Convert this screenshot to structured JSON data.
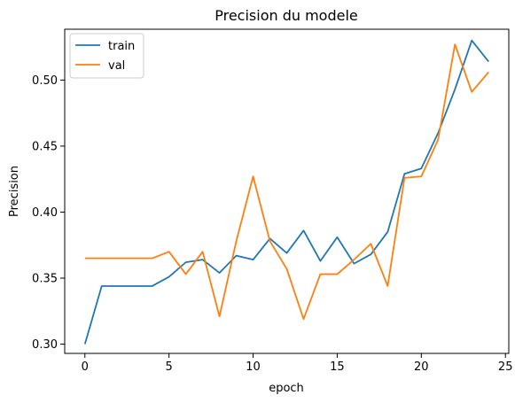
{
  "chart_data": {
    "type": "line",
    "title": "Precision du modele",
    "xlabel": "epoch",
    "ylabel": "Precision",
    "xlim": [
      -1.2,
      25.2
    ],
    "ylim": [
      0.293,
      0.5385
    ],
    "xticks": [
      0,
      5,
      10,
      15,
      20,
      25
    ],
    "yticks": [
      0.3,
      0.35,
      0.4,
      0.45,
      0.5
    ],
    "ytick_labels": [
      "0.30",
      "0.35",
      "0.40",
      "0.45",
      "0.50"
    ],
    "xtick_labels": [
      "0",
      "5",
      "10",
      "15",
      "20",
      "25"
    ],
    "grid": false,
    "legend_position": "top-left",
    "x": [
      0,
      1,
      2,
      3,
      4,
      5,
      6,
      7,
      8,
      9,
      10,
      11,
      12,
      13,
      14,
      15,
      16,
      17,
      18,
      19,
      20,
      21,
      22,
      23,
      24
    ],
    "series": [
      {
        "name": "train",
        "color": "#1f77b4",
        "values": [
          0.3,
          0.344,
          0.344,
          0.344,
          0.344,
          0.351,
          0.362,
          0.364,
          0.354,
          0.367,
          0.364,
          0.38,
          0.369,
          0.386,
          0.363,
          0.381,
          0.361,
          0.368,
          0.385,
          0.429,
          0.433,
          0.46,
          0.493,
          0.53,
          0.514
        ]
      },
      {
        "name": "val",
        "color": "#ff7f0e",
        "values": [
          0.365,
          0.365,
          0.365,
          0.365,
          0.365,
          0.37,
          0.353,
          0.37,
          0.321,
          0.378,
          0.427,
          0.378,
          0.357,
          0.319,
          0.353,
          0.353,
          0.364,
          0.376,
          0.344,
          0.426,
          0.427,
          0.455,
          0.527,
          0.491,
          0.506
        ]
      }
    ]
  }
}
